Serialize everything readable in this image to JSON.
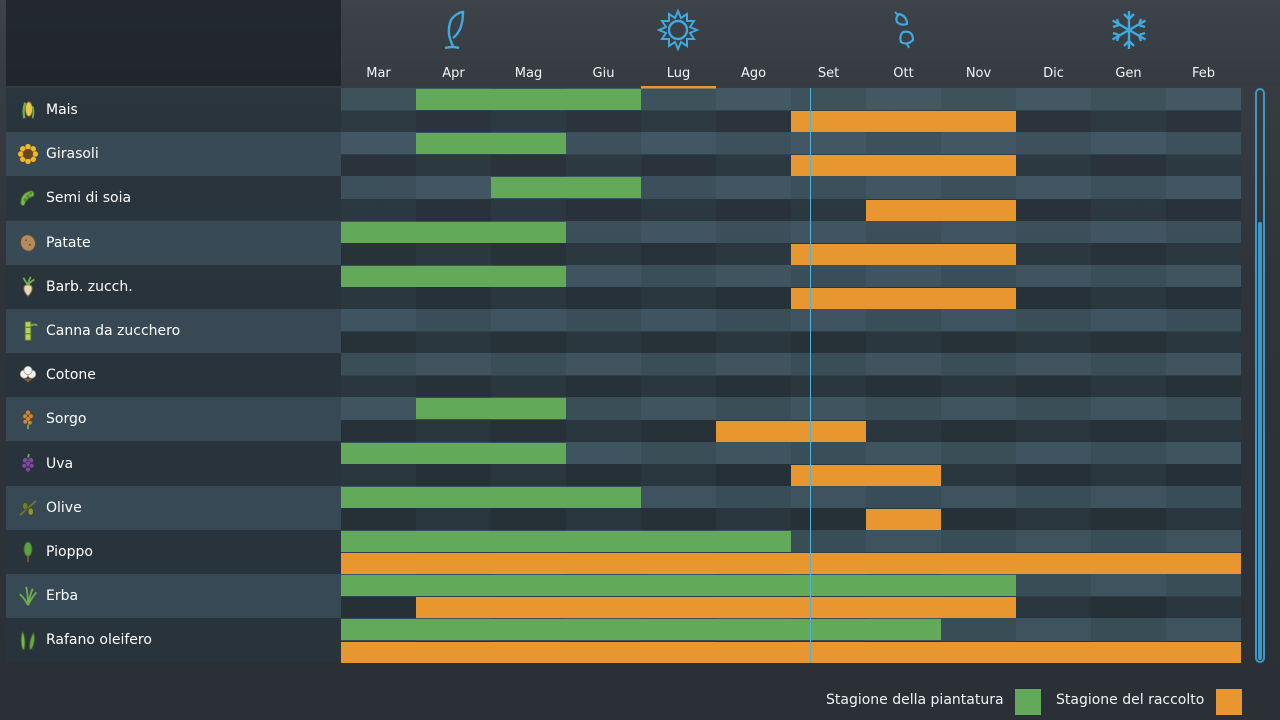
{
  "colors": {
    "planting": "#62a959",
    "harvest": "#e8962f",
    "today_marker": "#4fb3de",
    "season_icon": "#3fa9e0"
  },
  "season_icons": [
    "spring-leaf-icon",
    "summer-sun-icon",
    "autumn-leaves-icon",
    "winter-snowflake-icon"
  ],
  "calendar": {
    "months": [
      "Mar",
      "Apr",
      "Mag",
      "Giu",
      "Lug",
      "Ago",
      "Set",
      "Ott",
      "Nov",
      "Dic",
      "Gen",
      "Feb"
    ],
    "current_month": "Lug",
    "today_position_months": 6.25
  },
  "crops": [
    {
      "name": "Mais",
      "icon": "corn-icon",
      "plant": [
        [
          1,
          4
        ]
      ],
      "harvest": [
        [
          6,
          9
        ]
      ]
    },
    {
      "name": "Girasoli",
      "icon": "sunflower-icon",
      "plant": [
        [
          1,
          3
        ]
      ],
      "harvest": [
        [
          6,
          9
        ]
      ]
    },
    {
      "name": "Semi di soia",
      "icon": "soybean-icon",
      "plant": [
        [
          2,
          4
        ]
      ],
      "harvest": [
        [
          7,
          9
        ]
      ]
    },
    {
      "name": "Patate",
      "icon": "potato-icon",
      "plant": [
        [
          0,
          3
        ]
      ],
      "harvest": [
        [
          6,
          9
        ]
      ]
    },
    {
      "name": "Barb. zucch.",
      "icon": "sugarbeet-icon",
      "plant": [
        [
          0,
          3
        ]
      ],
      "harvest": [
        [
          6,
          9
        ]
      ]
    },
    {
      "name": "Canna da zucchero",
      "icon": "sugarcane-icon",
      "plant": [],
      "harvest": []
    },
    {
      "name": "Cotone",
      "icon": "cotton-icon",
      "plant": [],
      "harvest": []
    },
    {
      "name": "Sorgo",
      "icon": "sorghum-icon",
      "plant": [
        [
          1,
          3
        ]
      ],
      "harvest": [
        [
          5,
          7
        ]
      ]
    },
    {
      "name": "Uva",
      "icon": "grapes-icon",
      "plant": [
        [
          0,
          3
        ]
      ],
      "harvest": [
        [
          6,
          8
        ]
      ]
    },
    {
      "name": "Olive",
      "icon": "olive-icon",
      "plant": [
        [
          0,
          4
        ]
      ],
      "harvest": [
        [
          7,
          8
        ]
      ]
    },
    {
      "name": "Pioppo",
      "icon": "poplar-icon",
      "plant": [
        [
          0,
          6
        ]
      ],
      "harvest": [
        [
          0,
          12
        ]
      ]
    },
    {
      "name": "Erba",
      "icon": "grass-icon",
      "plant": [
        [
          0,
          9
        ]
      ],
      "harvest": [
        [
          1,
          9
        ]
      ]
    },
    {
      "name": "Rafano oleifero",
      "icon": "oilseed-radish-icon",
      "plant": [
        [
          0,
          8
        ]
      ],
      "harvest": [
        [
          0,
          12
        ]
      ]
    }
  ],
  "legend": {
    "planting_label": "Stagione della piantatura",
    "harvest_label": "Stagione del raccolto"
  }
}
